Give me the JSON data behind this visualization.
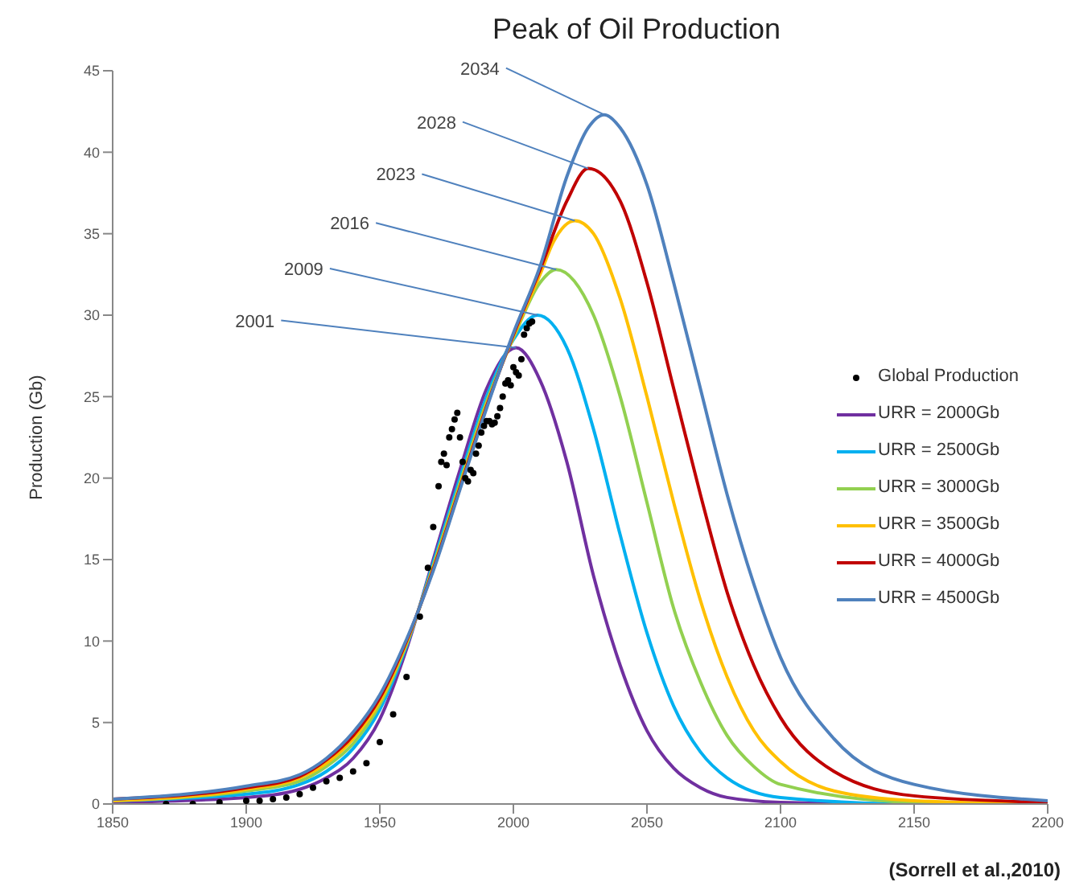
{
  "chart_data": {
    "type": "line",
    "title": "Peak of Oil Production",
    "ylabel": "Production (Gb)",
    "xlim": [
      1850,
      2200
    ],
    "xticks": [
      1850,
      1900,
      1950,
      2000,
      2050,
      2100,
      2150,
      2200
    ],
    "ylim": [
      0,
      45
    ],
    "yticks": [
      0,
      5,
      10,
      15,
      20,
      25,
      30,
      35,
      40,
      45
    ],
    "legend": "right",
    "marker": "none",
    "series": [
      {
        "name": "Global Production",
        "type": "scatter",
        "marker": "circle",
        "color": "#000000",
        "x": [
          1870,
          1880,
          1890,
          1900,
          1905,
          1910,
          1915,
          1920,
          1925,
          1930,
          1935,
          1940,
          1945,
          1950,
          1955,
          1960,
          1965,
          1968,
          1970,
          1972,
          1973,
          1974,
          1975,
          1976,
          1977,
          1978,
          1979,
          1980,
          1981,
          1982,
          1983,
          1984,
          1985,
          1986,
          1987,
          1988,
          1989,
          1990,
          1991,
          1992,
          1993,
          1994,
          1995,
          1996,
          1997,
          1998,
          1999,
          2000,
          2001,
          2002,
          2003,
          2004,
          2005,
          2006,
          2007
        ],
        "values": [
          0,
          0,
          0.1,
          0.2,
          0.2,
          0.3,
          0.4,
          0.6,
          1.0,
          1.4,
          1.6,
          2.0,
          2.5,
          3.8,
          5.5,
          7.8,
          11.5,
          14.5,
          17,
          19.5,
          21,
          21.5,
          20.8,
          22.5,
          23,
          23.6,
          24,
          22.5,
          21,
          20,
          19.8,
          20.5,
          20.3,
          21.5,
          22,
          22.8,
          23.2,
          23.5,
          23.5,
          23.3,
          23.4,
          23.8,
          24.3,
          25,
          25.8,
          26,
          25.7,
          26.8,
          26.5,
          26.3,
          27.3,
          28.8,
          29.2,
          29.5,
          29.6
        ]
      },
      {
        "name": "URR = 2000Gb",
        "color": "#7030a0",
        "x": [
          1850,
          1900,
          1920,
          1930,
          1940,
          1950,
          1960,
          1970,
          1980,
          1990,
          2001,
          2010,
          2020,
          2030,
          2040,
          2050,
          2060,
          2070,
          2080,
          2100,
          2150,
          2200
        ],
        "values": [
          0.1,
          0.4,
          0.9,
          1.6,
          2.8,
          5.2,
          9.5,
          15,
          20.5,
          25.5,
          28,
          26,
          21,
          14,
          8.5,
          4.5,
          2.2,
          1,
          0.4,
          0.1,
          0,
          0
        ]
      },
      {
        "name": "URR = 2500Gb",
        "color": "#00b0f0",
        "x": [
          1850,
          1900,
          1920,
          1930,
          1940,
          1950,
          1960,
          1970,
          1980,
          1990,
          2000,
          2009,
          2020,
          2030,
          2040,
          2050,
          2060,
          2070,
          2080,
          2100,
          2150,
          2200
        ],
        "values": [
          0.2,
          0.6,
          1.2,
          2.0,
          3.4,
          5.8,
          9.7,
          14.8,
          20,
          25,
          28.5,
          30,
          28,
          23,
          16.5,
          10.5,
          6,
          3.2,
          1.6,
          0.4,
          0,
          0
        ]
      },
      {
        "name": "URR = 3000Gb",
        "color": "#92d050",
        "x": [
          1850,
          1900,
          1920,
          1930,
          1940,
          1950,
          1960,
          1970,
          1980,
          1990,
          2000,
          2010,
          2016,
          2030,
          2040,
          2050,
          2060,
          2070,
          2080,
          2090,
          2100,
          2150,
          2200
        ],
        "values": [
          0.2,
          0.8,
          1.4,
          2.3,
          3.7,
          6.1,
          9.8,
          14.6,
          19.7,
          24.7,
          28.6,
          32,
          32.8,
          30,
          25,
          18.5,
          12,
          7.5,
          4.2,
          2.3,
          1.2,
          0.1,
          0
        ]
      },
      {
        "name": "URR = 3500Gb",
        "color": "#ffc000",
        "x": [
          1850,
          1900,
          1920,
          1930,
          1940,
          1950,
          1960,
          1970,
          1980,
          1990,
          2000,
          2010,
          2015,
          2023,
          2030,
          2040,
          2050,
          2060,
          2070,
          2080,
          2090,
          2100,
          2120,
          2150,
          2200
        ],
        "values": [
          0.2,
          0.9,
          1.6,
          2.5,
          4.0,
          6.3,
          9.9,
          14.5,
          19.5,
          24.5,
          28.7,
          32.5,
          34.5,
          35.8,
          35,
          31,
          25,
          18.5,
          12.5,
          7.8,
          4.5,
          2.6,
          0.8,
          0.2,
          0
        ]
      },
      {
        "name": "URR = 4000Gb",
        "color": "#c00000",
        "x": [
          1850,
          1900,
          1920,
          1930,
          1940,
          1950,
          1960,
          1970,
          1980,
          1990,
          2000,
          2010,
          2020,
          2028,
          2040,
          2050,
          2060,
          2070,
          2080,
          2090,
          2100,
          2120,
          2150,
          2200
        ],
        "values": [
          0.3,
          1.0,
          1.7,
          2.7,
          4.2,
          6.5,
          10,
          14.4,
          19.4,
          24.4,
          28.8,
          32.8,
          37,
          39,
          37,
          32,
          25.5,
          19,
          13,
          8.5,
          5.3,
          2,
          0.5,
          0.1
        ]
      },
      {
        "name": "URR = 4500Gb",
        "color": "#4f81bd",
        "x": [
          1850,
          1900,
          1920,
          1930,
          1940,
          1950,
          1960,
          1970,
          1980,
          1990,
          2000,
          2010,
          2020,
          2028,
          2034,
          2040,
          2050,
          2060,
          2070,
          2080,
          2090,
          2100,
          2120,
          2150,
          2200
        ],
        "values": [
          0.3,
          1.1,
          1.8,
          2.8,
          4.4,
          6.7,
          10.1,
          14.3,
          19.3,
          24.3,
          28.9,
          33,
          38.5,
          41.5,
          42.3,
          41.5,
          38,
          32,
          25.5,
          19,
          13.5,
          9,
          4,
          1.2,
          0.2
        ]
      }
    ],
    "annotations": [
      {
        "text": "2001",
        "x": 2001,
        "y": 28
      },
      {
        "text": "2009",
        "x": 2009,
        "y": 30
      },
      {
        "text": "2016",
        "x": 2016,
        "y": 32.8
      },
      {
        "text": "2023",
        "x": 2023,
        "y": 35.8
      },
      {
        "text": "2028",
        "x": 2028,
        "y": 39
      },
      {
        "text": "2034",
        "x": 2034,
        "y": 42.3
      },
      "(Sorrell et al.,2010)"
    ]
  }
}
